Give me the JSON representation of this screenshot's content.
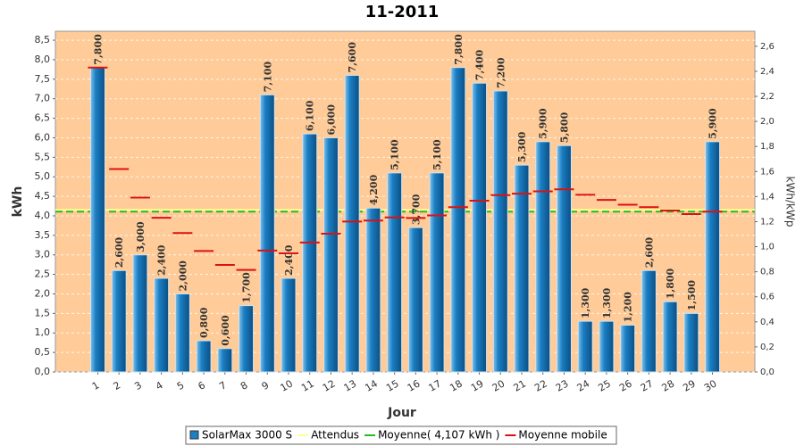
{
  "chart_data": {
    "type": "bar",
    "title": "11-2011",
    "x_label": "Jour",
    "y_label": "kWh",
    "y2_label": "kWh/kWp",
    "categories": [
      "1",
      "2",
      "3",
      "4",
      "5",
      "6",
      "7",
      "8",
      "9",
      "10",
      "11",
      "12",
      "13",
      "14",
      "15",
      "16",
      "17",
      "18",
      "19",
      "20",
      "21",
      "22",
      "23",
      "24",
      "25",
      "26",
      "27",
      "28",
      "29",
      "30"
    ],
    "series": [
      {
        "name": "SolarMax 3000 S",
        "color": "#1a7fc4",
        "values": [
          7.8,
          2.6,
          3.0,
          2.4,
          2.0,
          0.8,
          0.6,
          1.7,
          7.1,
          2.4,
          6.1,
          6.0,
          7.6,
          4.2,
          5.1,
          3.7,
          5.1,
          7.8,
          7.4,
          7.2,
          5.3,
          5.9,
          5.8,
          1.3,
          1.3,
          1.2,
          2.6,
          1.8,
          1.5,
          5.9
        ],
        "value_labels": [
          "7,800",
          "2,600",
          "3,000",
          "2,400",
          "2,000",
          "0,800",
          "0,600",
          "1,700",
          "7,100",
          "2,400",
          "6,100",
          "6,000",
          "7,600",
          "4,200",
          "5,100",
          "3,700",
          "5,100",
          "7,800",
          "7,400",
          "7,200",
          "5,300",
          "5,900",
          "5,800",
          "1,300",
          "1,300",
          "1,200",
          "2,600",
          "1,800",
          "1,500",
          "5,900"
        ]
      },
      {
        "name": "Moyenne mobile",
        "color": "#dd1111",
        "values": [
          7.8,
          5.2,
          4.467,
          3.95,
          3.56,
          3.1,
          2.743,
          2.613,
          3.111,
          3.04,
          3.318,
          3.542,
          3.854,
          3.879,
          3.96,
          3.944,
          4.012,
          4.222,
          4.389,
          4.53,
          4.567,
          4.627,
          4.678,
          4.538,
          4.408,
          4.285,
          4.222,
          4.136,
          4.045,
          4.107
        ]
      }
    ],
    "lines": [
      {
        "name": "Attendus",
        "color": "#ffff99",
        "value": 4.15
      },
      {
        "name": "Moyenne( 4,107 kWh )",
        "color": "#22bb22",
        "value": 4.107
      }
    ],
    "ylim": [
      0,
      8.73
    ],
    "yticks": [
      {
        "value": 0,
        "label": "0,0"
      },
      {
        "value": 0.5,
        "label": "0,5"
      },
      {
        "value": 1,
        "label": "1,0"
      },
      {
        "value": 1.5,
        "label": "1,5"
      },
      {
        "value": 2,
        "label": "2,0"
      },
      {
        "value": 2.5,
        "label": "2,5"
      },
      {
        "value": 3,
        "label": "3,0"
      },
      {
        "value": 3.5,
        "label": "3,5"
      },
      {
        "value": 4,
        "label": "4,0"
      },
      {
        "value": 4.5,
        "label": "4,5"
      },
      {
        "value": 5,
        "label": "5,0"
      },
      {
        "value": 5.5,
        "label": "5,5"
      },
      {
        "value": 6,
        "label": "6,0"
      },
      {
        "value": 6.5,
        "label": "6,5"
      },
      {
        "value": 7,
        "label": "7,0"
      },
      {
        "value": 7.5,
        "label": "7,5"
      },
      {
        "value": 8,
        "label": "8,0"
      },
      {
        "value": 8.5,
        "label": "8,5"
      }
    ],
    "y2lim": [
      0,
      2.72
    ],
    "y2ticks": [
      {
        "value": 0,
        "label": "0,0"
      },
      {
        "value": 0.2,
        "label": "0,2"
      },
      {
        "value": 0.4,
        "label": "0,4"
      },
      {
        "value": 0.6,
        "label": "0,6"
      },
      {
        "value": 0.8,
        "label": "0,8"
      },
      {
        "value": 1,
        "label": "1,0"
      },
      {
        "value": 1.2,
        "label": "1,2"
      },
      {
        "value": 1.4,
        "label": "1,4"
      },
      {
        "value": 1.6,
        "label": "1,6"
      },
      {
        "value": 1.8,
        "label": "1,8"
      },
      {
        "value": 2,
        "label": "2,0"
      },
      {
        "value": 2.2,
        "label": "2,2"
      },
      {
        "value": 2.4,
        "label": "2,4"
      },
      {
        "value": 2.6,
        "label": "2,6"
      }
    ],
    "grid": true,
    "plot_background": "#ffcc99"
  }
}
